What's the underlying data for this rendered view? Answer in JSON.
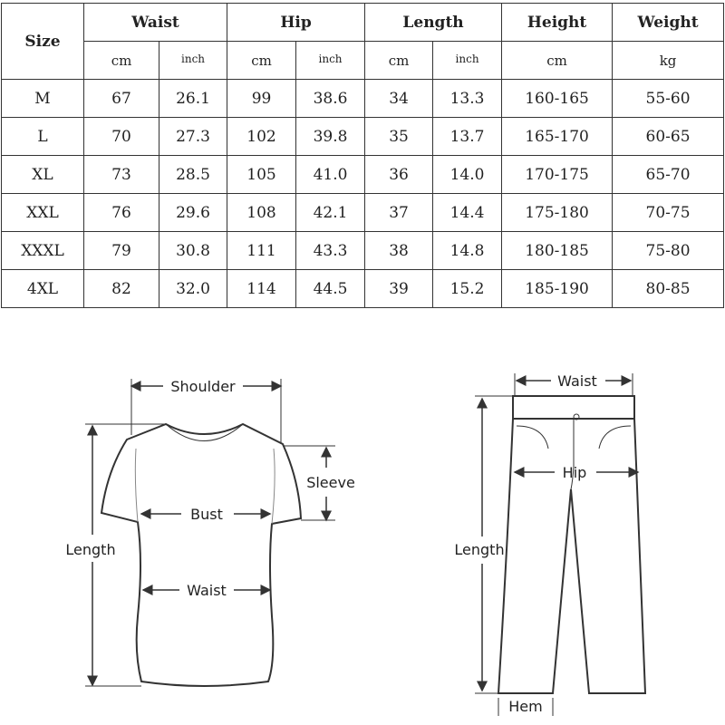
{
  "table": {
    "size_header": "Size",
    "groups": [
      "Waist",
      "Hip",
      "Length",
      "Height",
      "Weight"
    ],
    "units": [
      "cm",
      "inch",
      "cm",
      "inch",
      "cm",
      "inch",
      "cm",
      "kg"
    ],
    "rows": [
      [
        "M",
        "67",
        "26.1",
        "99",
        "38.6",
        "34",
        "13.3",
        "160-165",
        "55-60"
      ],
      [
        "L",
        "70",
        "27.3",
        "102",
        "39.8",
        "35",
        "13.7",
        "165-170",
        "60-65"
      ],
      [
        "XL",
        "73",
        "28.5",
        "105",
        "41.0",
        "36",
        "14.0",
        "170-175",
        "65-70"
      ],
      [
        "XXL",
        "76",
        "29.6",
        "108",
        "42.1",
        "37",
        "14.4",
        "175-180",
        "70-75"
      ],
      [
        "XXXL",
        "79",
        "30.8",
        "111",
        "43.3",
        "38",
        "14.8",
        "180-185",
        "75-80"
      ],
      [
        "4XL",
        "82",
        "32.0",
        "114",
        "44.5",
        "39",
        "15.2",
        "185-190",
        "80-85"
      ]
    ]
  },
  "tshirt": {
    "shoulder": "Shoulder",
    "sleeve": "Sleeve",
    "bust": "Bust",
    "length": "Length",
    "waist": "Waist"
  },
  "pants": {
    "waist": "Waist",
    "hip": "Hip",
    "length": "Length",
    "hem": "Hem"
  }
}
